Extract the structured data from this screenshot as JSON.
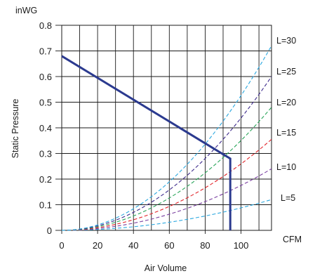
{
  "chart_data": {
    "type": "line",
    "title": "",
    "ylabel": "Static Pressure",
    "xlabel": "Air Volume",
    "y_unit": "inWG",
    "x_unit": "CFM",
    "xlim": [
      0,
      117
    ],
    "ylim": [
      0,
      0.8
    ],
    "x_ticks": [
      0,
      20,
      40,
      60,
      80,
      100
    ],
    "x_tick_labels": [
      "0",
      "20",
      "40",
      "60",
      "80",
      "100"
    ],
    "y_ticks": [
      0,
      0.1,
      0.2,
      0.3,
      0.4,
      0.5,
      0.6,
      0.7,
      0.8
    ],
    "y_tick_labels": [
      "0",
      "0.1",
      "0.2",
      "0.3",
      "0.4",
      "0.5",
      "0.6",
      "0.7",
      "0.8"
    ],
    "grid": true,
    "fan_curve": {
      "color": "#2b3a8f",
      "points": [
        [
          0,
          0.68
        ],
        [
          94,
          0.28
        ],
        [
          94,
          0
        ]
      ]
    },
    "system_curves": [
      {
        "label": "L=5",
        "color": "#2aa7df",
        "points": [
          [
            0,
            0
          ],
          [
            40,
            0.021
          ],
          [
            80,
            0.066
          ],
          [
            94,
            0.085
          ],
          [
            117,
            0.12
          ]
        ]
      },
      {
        "label": "L=10",
        "color": "#7a3fa0",
        "points": [
          [
            0,
            0
          ],
          [
            40,
            0.042
          ],
          [
            80,
            0.132
          ],
          [
            94,
            0.16
          ],
          [
            117,
            0.24
          ]
        ]
      },
      {
        "label": "L=15",
        "color": "#e2242a",
        "points": [
          [
            0,
            0
          ],
          [
            40,
            0.063
          ],
          [
            80,
            0.198
          ],
          [
            94,
            0.24
          ],
          [
            117,
            0.355
          ]
        ]
      },
      {
        "label": "L=20",
        "color": "#2aa55a",
        "points": [
          [
            0,
            0
          ],
          [
            40,
            0.084
          ],
          [
            80,
            0.264
          ],
          [
            94,
            0.32
          ],
          [
            117,
            0.48
          ]
        ]
      },
      {
        "label": "L=25",
        "color": "#3d2a8c",
        "points": [
          [
            0,
            0
          ],
          [
            40,
            0.105
          ],
          [
            80,
            0.33
          ],
          [
            94,
            0.4
          ],
          [
            117,
            0.6
          ]
        ]
      },
      {
        "label": "L=30",
        "color": "#2aa7df",
        "points": [
          [
            0,
            0
          ],
          [
            40,
            0.126
          ],
          [
            80,
            0.396
          ],
          [
            94,
            0.48
          ],
          [
            117,
            0.72
          ]
        ]
      }
    ]
  }
}
